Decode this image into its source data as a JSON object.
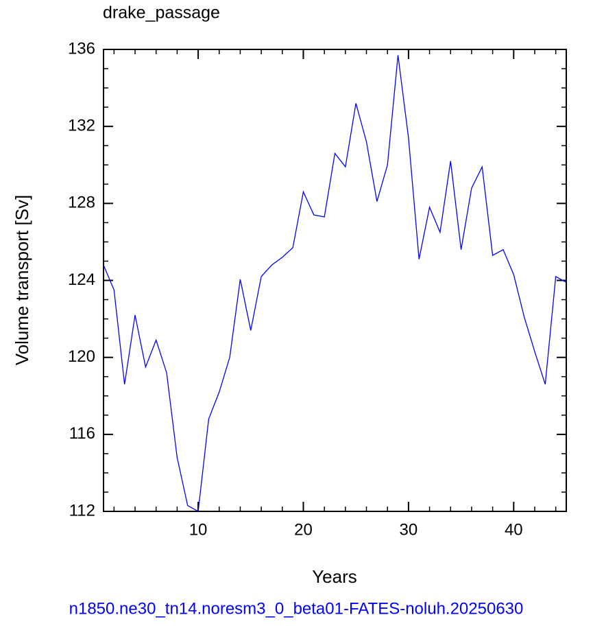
{
  "chart_data": {
    "type": "line",
    "title": "drake_passage",
    "xlabel": "Years",
    "ylabel": "Volume transport [Sv]",
    "caption": "n1850.ne30_tn14.noresm3_0_beta01-FATES-noluh.20250630",
    "x": [
      1,
      2,
      3,
      4,
      5,
      6,
      7,
      8,
      9,
      10,
      11,
      12,
      13,
      14,
      15,
      16,
      17,
      18,
      19,
      20,
      21,
      22,
      23,
      24,
      25,
      26,
      27,
      28,
      29,
      30,
      31,
      32,
      33,
      34,
      35,
      36,
      37,
      38,
      39,
      40,
      41,
      42,
      43,
      44,
      45
    ],
    "series": [
      {
        "color": "#0000ff",
        "values": [
          124.8,
          123.5,
          118.6,
          122.2,
          119.5,
          120.9,
          119.2,
          114.8,
          112.3,
          112.0,
          116.8,
          118.2,
          120.0,
          124.05,
          121.4,
          124.2,
          124.8,
          125.2,
          125.7,
          128.6,
          127.4,
          127.3,
          130.6,
          129.9,
          133.2,
          131.2,
          128.1,
          130.0,
          135.7,
          131.4,
          125.1,
          127.8,
          126.5,
          130.2,
          125.6,
          128.8,
          129.9,
          125.3,
          125.6,
          124.3,
          122.1,
          120.3,
          118.6,
          124.2,
          123.9
        ]
      }
    ],
    "xlim": [
      1,
      45
    ],
    "xticks": [
      10,
      20,
      30,
      40
    ],
    "ylim": [
      112,
      136
    ],
    "yticks": [
      112,
      116,
      120,
      124,
      128,
      132,
      136
    ]
  }
}
